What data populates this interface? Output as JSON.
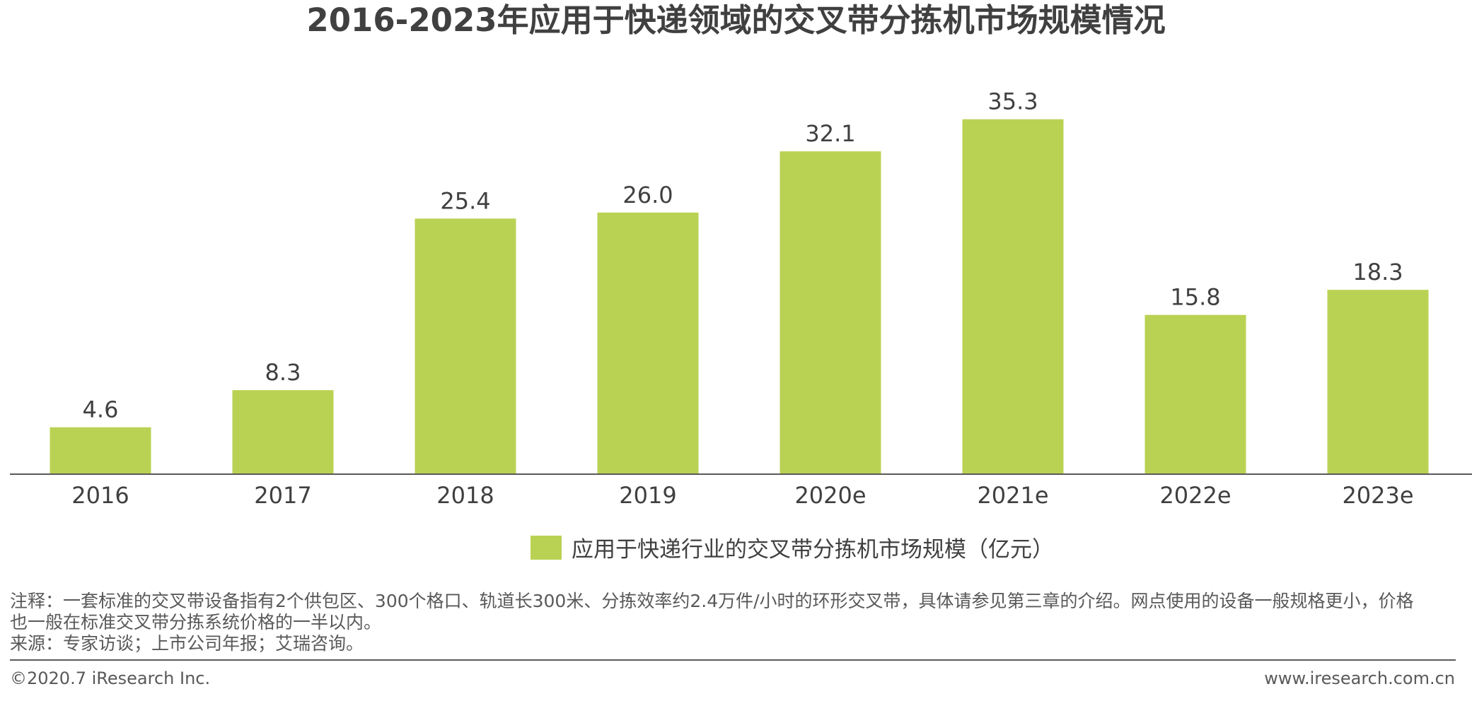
{
  "title": "2016-2023年应用于快递领域的交叉带分拣机市场规模情况",
  "chart_data": {
    "type": "bar",
    "title": "2016-2023年应用于快递领域的交叉带分拣机市场规模情况",
    "categories": [
      "2016",
      "2017",
      "2018",
      "2019",
      "2020e",
      "2021e",
      "2022e",
      "2023e"
    ],
    "series": [
      {
        "name": "应用于快递行业的交叉带分拣机市场规模（亿元）",
        "values": [
          4.6,
          8.3,
          25.4,
          26.0,
          32.1,
          35.3,
          15.8,
          18.3
        ],
        "labels": [
          "4.6",
          "8.3",
          "25.4",
          "26.0",
          "32.1",
          "35.3",
          "15.8",
          "18.3"
        ]
      }
    ],
    "xlabel": "",
    "ylabel": "",
    "ylim": [
      0,
      40
    ],
    "grid": false,
    "legend_position": "bottom-center",
    "bar_color": "#bad253",
    "axis_color": "#595959"
  },
  "legend": {
    "label": "应用于快递行业的交叉带分拣机市场规模（亿元）"
  },
  "notes": {
    "line1": "注释：一套标准的交叉带设备指有2个供包区、300个格口、轨道长300米、分拣效率约2.4万件/小时的环形交叉带，具体请参见第三章的介绍。网点使用的设备一般规格更小，价格",
    "line2": "也一般在标准交叉带分拣系统价格的一半以内。",
    "line3": "来源：专家访谈；上市公司年报；艾瑞咨询。"
  },
  "footer": {
    "copyright": "©2020.7 iResearch Inc.",
    "website": "www.iresearch.com.cn"
  }
}
